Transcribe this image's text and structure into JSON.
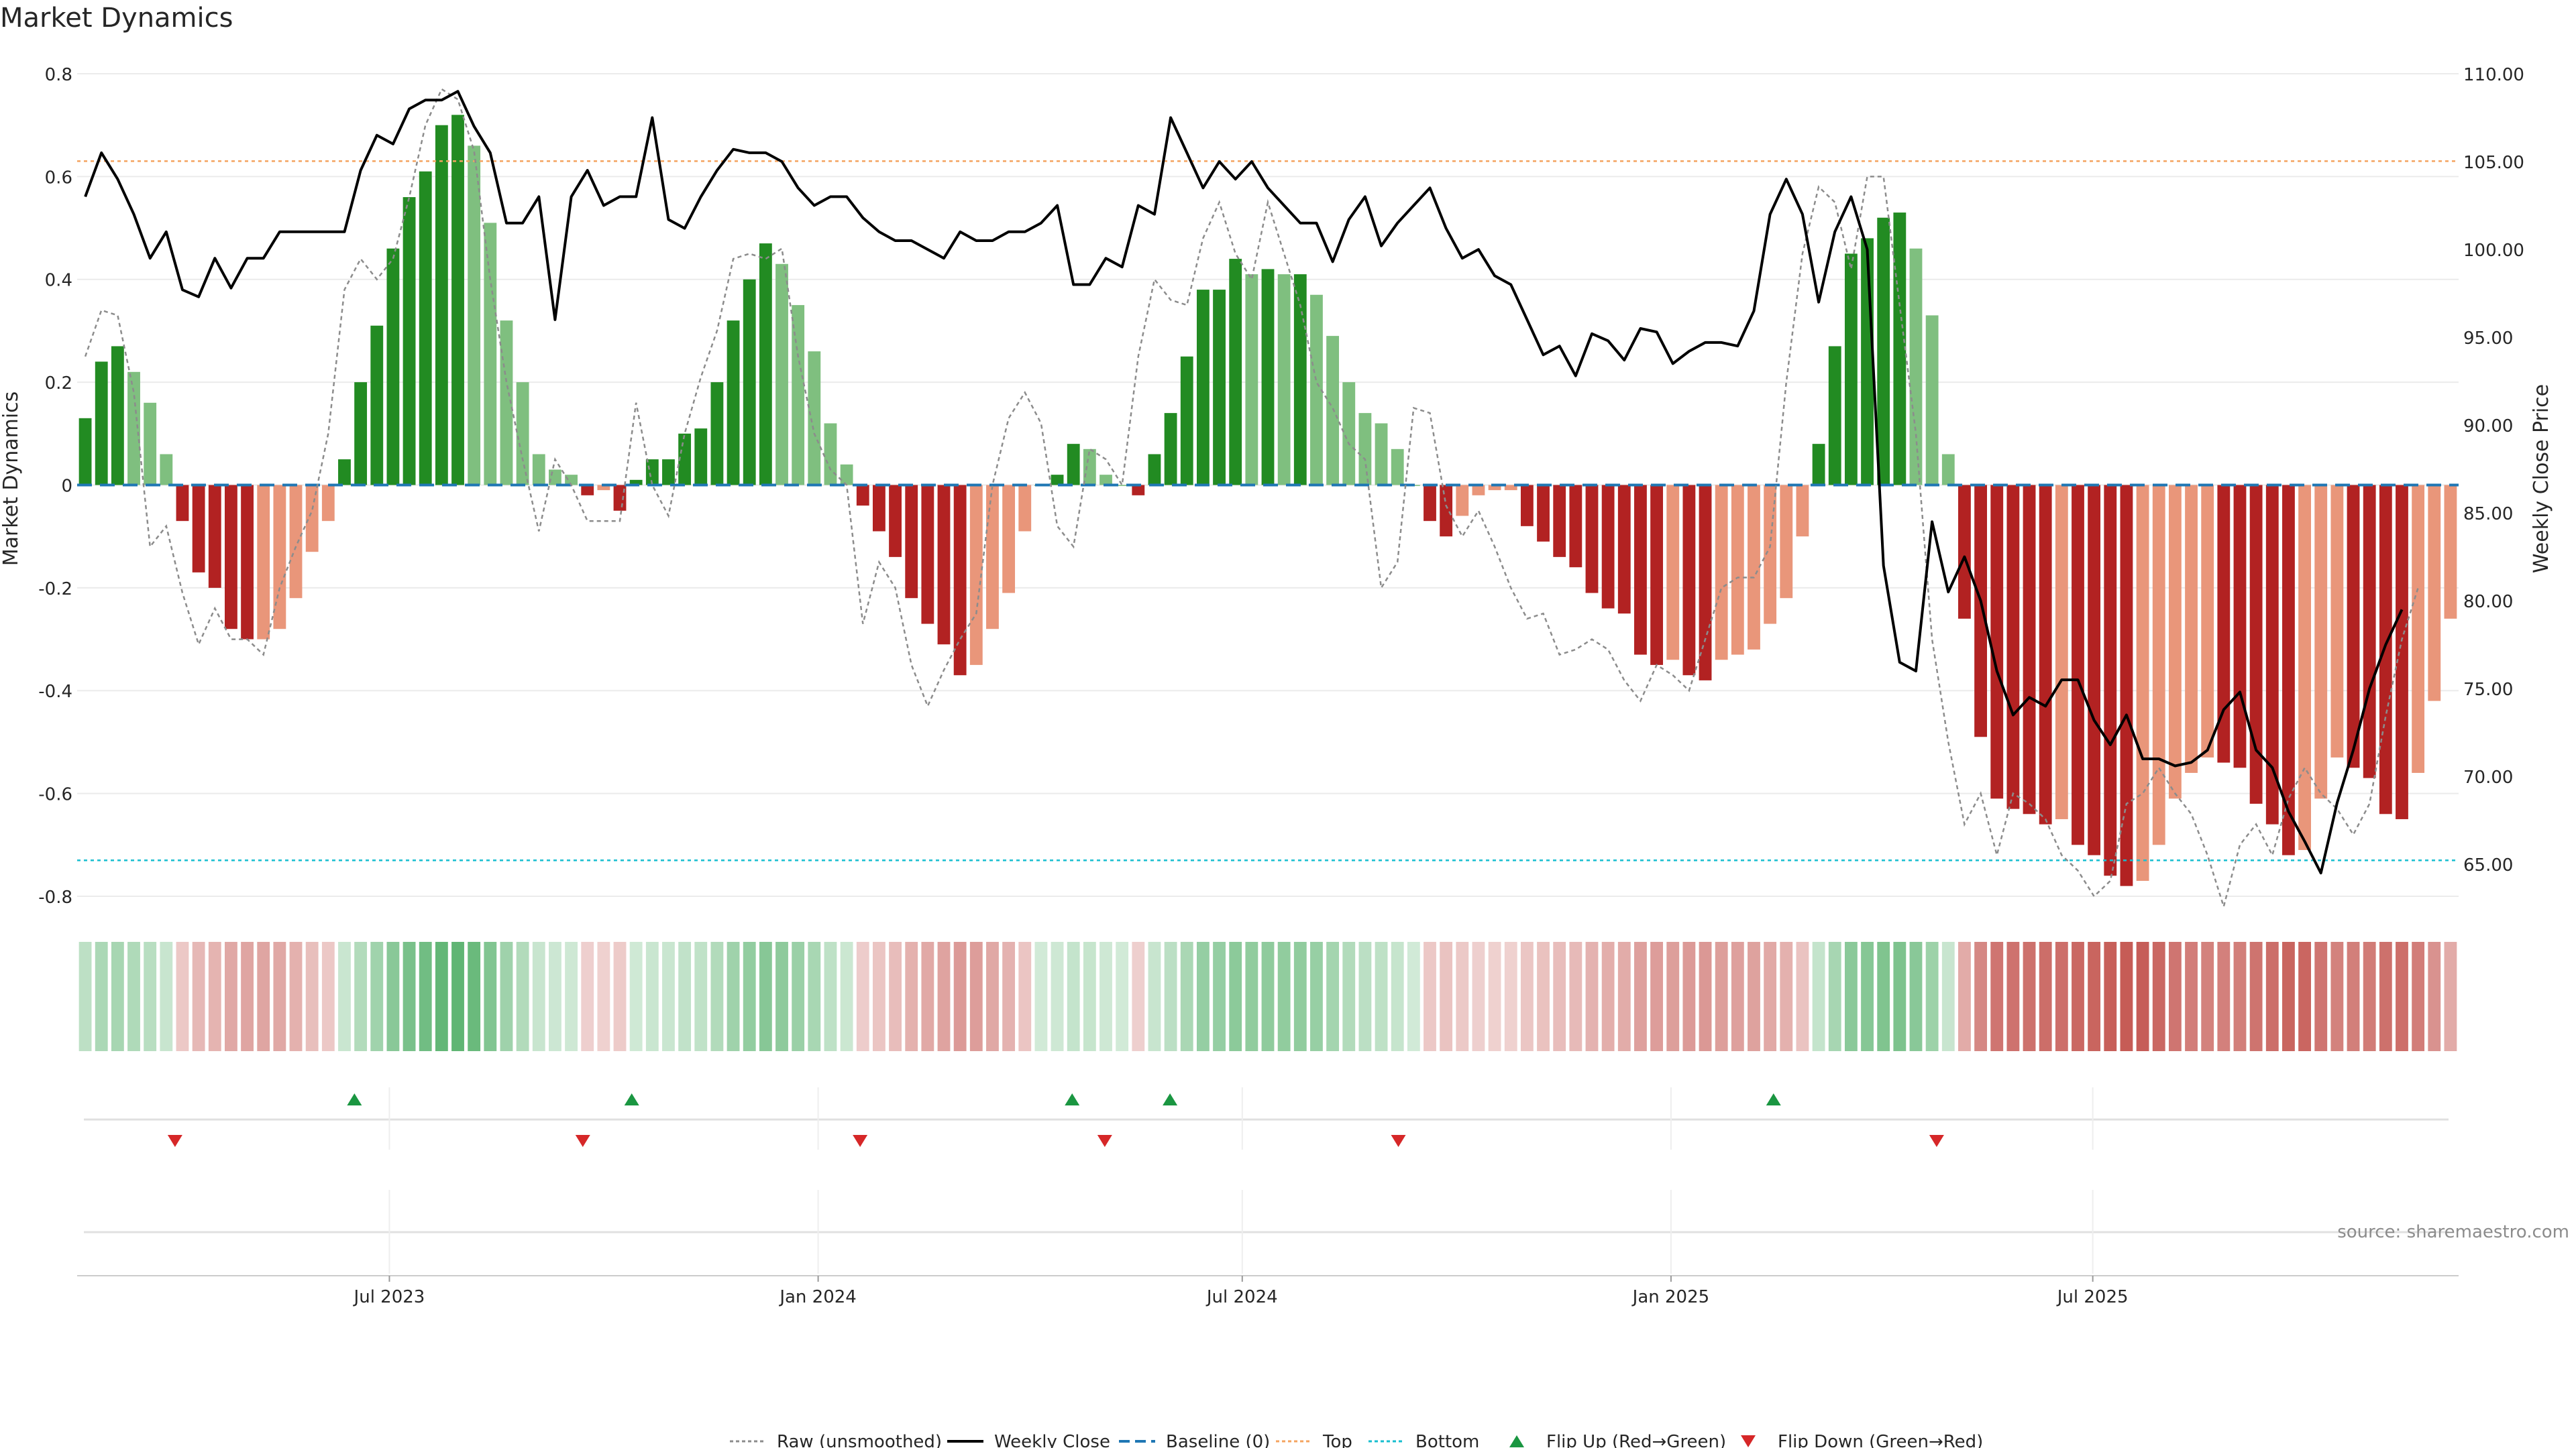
{
  "chart_data": {
    "type": "bar",
    "title": "Market Dynamics",
    "ylabel": "Market Dynamics",
    "y2label": "Weekly Close Price",
    "source": "source: sharemaestro.com",
    "ylim": [
      -0.83,
      0.8
    ],
    "y2lim": [
      62.3,
      110
    ],
    "yticks": [
      {
        "v": 0.8,
        "label": "0.8"
      },
      {
        "v": 0.6,
        "label": "0.6"
      },
      {
        "v": 0.4,
        "label": "0.4"
      },
      {
        "v": 0.2,
        "label": "0.2"
      },
      {
        "v": 0,
        "label": "0"
      },
      {
        "v": -0.2,
        "label": "-0.2"
      },
      {
        "v": -0.4,
        "label": "-0.4"
      },
      {
        "v": -0.6,
        "label": "-0.6"
      },
      {
        "v": -0.8,
        "label": "-0.8"
      }
    ],
    "y2ticks": [
      {
        "v": 110,
        "label": "110.00"
      },
      {
        "v": 105,
        "label": "105.00"
      },
      {
        "v": 100,
        "label": "100.00"
      },
      {
        "v": 95,
        "label": "95.00"
      },
      {
        "v": 90,
        "label": "90.00"
      },
      {
        "v": 85,
        "label": "85.00"
      },
      {
        "v": 80,
        "label": "80.00"
      },
      {
        "v": 75,
        "label": "75.00"
      },
      {
        "v": 70,
        "label": "70.00"
      },
      {
        "v": 65,
        "label": "65.00"
      }
    ],
    "x_start": "2023-02-17",
    "x_end": "2025-12-05",
    "xticks": [
      {
        "date": "2023-07-01",
        "label": "Jul 2023"
      },
      {
        "date": "2024-01-01",
        "label": "Jan 2024"
      },
      {
        "date": "2024-07-01",
        "label": "Jul 2024"
      },
      {
        "date": "2025-01-01",
        "label": "Jan 2025"
      },
      {
        "date": "2025-07-01",
        "label": "Jul 2025"
      }
    ],
    "top_level": 0.63,
    "bottom_level": -0.73,
    "baseline": 0,
    "smoothed": [
      0.13,
      0.24,
      0.27,
      0.22,
      0.16,
      0.06,
      -0.07,
      -0.17,
      -0.2,
      -0.28,
      -0.3,
      -0.3,
      -0.28,
      -0.22,
      -0.13,
      -0.07,
      0.05,
      0.2,
      0.31,
      0.46,
      0.56,
      0.61,
      0.7,
      0.72,
      0.66,
      0.51,
      0.32,
      0.2,
      0.06,
      0.03,
      0.02,
      -0.02,
      -0.01,
      -0.05,
      0.01,
      0.05,
      0.05,
      0.1,
      0.11,
      0.2,
      0.32,
      0.4,
      0.47,
      0.43,
      0.35,
      0.26,
      0.12,
      0.04,
      -0.04,
      -0.09,
      -0.14,
      -0.22,
      -0.27,
      -0.31,
      -0.37,
      -0.35,
      -0.28,
      -0.21,
      -0.09,
      0.0,
      0.02,
      0.08,
      0.07,
      0.02,
      0.0,
      -0.02,
      0.06,
      0.14,
      0.25,
      0.38,
      0.38,
      0.44,
      0.41,
      0.42,
      0.41,
      0.41,
      0.37,
      0.29,
      0.2,
      0.14,
      0.12,
      0.07,
      0.0,
      -0.07,
      -0.1,
      -0.06,
      -0.02,
      -0.01,
      -0.01,
      -0.08,
      -0.11,
      -0.14,
      -0.16,
      -0.21,
      -0.24,
      -0.25,
      -0.33,
      -0.35,
      -0.34,
      -0.37,
      -0.38,
      -0.34,
      -0.33,
      -0.32,
      -0.27,
      -0.22,
      -0.1,
      0.08,
      0.27,
      0.45,
      0.48,
      0.52,
      0.53,
      0.46,
      0.33,
      0.06,
      -0.26,
      -0.49,
      -0.61,
      -0.63,
      -0.64,
      -0.66,
      -0.65,
      -0.7,
      -0.72,
      -0.76,
      -0.78,
      -0.77,
      -0.7,
      -0.61,
      -0.56,
      -0.53,
      -0.54,
      -0.55,
      -0.62,
      -0.66,
      -0.72,
      -0.71,
      -0.61,
      -0.53,
      -0.55,
      -0.57,
      -0.64,
      -0.65,
      -0.56,
      -0.42,
      -0.26
    ],
    "raw": [
      0.25,
      0.34,
      0.33,
      0.18,
      -0.12,
      -0.08,
      -0.21,
      -0.31,
      -0.24,
      -0.3,
      -0.3,
      -0.33,
      -0.2,
      -0.12,
      -0.05,
      0.1,
      0.38,
      0.44,
      0.4,
      0.44,
      0.56,
      0.7,
      0.77,
      0.75,
      0.65,
      0.4,
      0.2,
      0.05,
      -0.09,
      0.05,
      0.0,
      -0.07,
      -0.07,
      -0.07,
      0.16,
      0.0,
      -0.06,
      0.1,
      0.21,
      0.3,
      0.44,
      0.45,
      0.44,
      0.46,
      0.25,
      0.1,
      0.03,
      0.0,
      -0.27,
      -0.15,
      -0.2,
      -0.35,
      -0.43,
      -0.36,
      -0.3,
      -0.25,
      0.0,
      0.13,
      0.18,
      0.12,
      -0.08,
      -0.12,
      0.07,
      0.05,
      0.0,
      0.25,
      0.4,
      0.36,
      0.35,
      0.48,
      0.55,
      0.45,
      0.4,
      0.55,
      0.45,
      0.35,
      0.2,
      0.15,
      0.08,
      0.05,
      -0.2,
      -0.15,
      0.15,
      0.14,
      -0.04,
      -0.1,
      -0.05,
      -0.12,
      -0.2,
      -0.26,
      -0.25,
      -0.33,
      -0.32,
      -0.3,
      -0.32,
      -0.38,
      -0.42,
      -0.35,
      -0.37,
      -0.4,
      -0.3,
      -0.2,
      -0.18,
      -0.18,
      -0.12,
      0.2,
      0.45,
      0.58,
      0.55,
      0.42,
      0.6,
      0.6,
      0.35,
      0.1,
      -0.3,
      -0.5,
      -0.66,
      -0.6,
      -0.72,
      -0.6,
      -0.62,
      -0.65,
      -0.72,
      -0.75,
      -0.8,
      -0.77,
      -0.62,
      -0.6,
      -0.55,
      -0.6,
      -0.64,
      -0.72,
      -0.82,
      -0.7,
      -0.66,
      -0.72,
      -0.61,
      -0.55,
      -0.6,
      -0.63,
      -0.68,
      -0.62,
      -0.45,
      -0.3,
      -0.2
    ],
    "close": [
      103,
      105.5,
      104,
      102,
      99.5,
      101,
      97.7,
      97.3,
      99.5,
      97.8,
      99.5,
      99.5,
      101,
      101,
      101,
      101,
      101,
      104.5,
      106.5,
      106,
      108,
      108.5,
      108.5,
      109,
      107,
      105.5,
      101.5,
      101.5,
      103,
      96,
      103,
      104.5,
      102.5,
      103,
      103,
      107.5,
      101.7,
      101.2,
      103,
      104.5,
      105.7,
      105.5,
      105.5,
      105,
      103.5,
      102.5,
      103,
      103,
      101.8,
      101,
      100.5,
      100.5,
      100,
      99.5,
      101,
      100.5,
      100.5,
      101,
      101,
      101.5,
      102.5,
      98,
      98,
      99.5,
      99,
      102.5,
      102,
      107.5,
      105.5,
      103.5,
      105,
      104,
      105,
      103.5,
      102.5,
      101.5,
      101.5,
      99.3,
      101.7,
      103,
      100.2,
      101.5,
      102.5,
      103.5,
      101.2,
      99.5,
      100,
      98.5,
      98,
      96,
      94,
      94.5,
      92.8,
      95.2,
      94.8,
      93.7,
      95.5,
      95.3,
      93.5,
      94.2,
      94.7,
      94.7,
      94.5,
      96.5,
      102,
      104,
      102,
      97,
      101,
      103,
      100,
      82,
      76.5,
      76,
      84.5,
      80.5,
      82.5,
      80,
      76,
      73.5,
      74.5,
      74,
      75.5,
      75.5,
      73.2,
      71.8,
      73.5,
      71,
      71,
      70.6,
      70.8,
      71.5,
      73.8,
      74.8,
      71.5,
      70.5,
      68,
      66.3,
      64.5,
      68.5,
      71.5,
      75,
      77.5,
      79.5
    ],
    "series": [
      {
        "name": "Raw (unsmoothed)",
        "color": "#8c8c8c"
      },
      {
        "name": "Weekly Close",
        "color": "#000000"
      },
      {
        "name": "Baseline (0)",
        "color": "#1f77b4"
      },
      {
        "name": "Top",
        "color": "#ff7f0e"
      },
      {
        "name": "Bottom",
        "color": "#17becf"
      },
      {
        "name": "Flip Up (Red→Green)",
        "color": "#1a9641"
      },
      {
        "name": "Flip Down (Green→Red)",
        "color": "#d62728"
      }
    ],
    "flip_up_dates": [
      "2023-06-16",
      "2023-10-13",
      "2024-04-19",
      "2024-05-31",
      "2025-02-14"
    ],
    "flip_down_dates": [
      "2023-03-31",
      "2023-09-22",
      "2024-01-19",
      "2024-05-03",
      "2024-09-06",
      "2025-04-25"
    ],
    "colors": {
      "strong_green": "#228b22",
      "light_green": "#7fbf7f",
      "strong_red": "#b22222",
      "light_red": "#e9967a"
    }
  }
}
